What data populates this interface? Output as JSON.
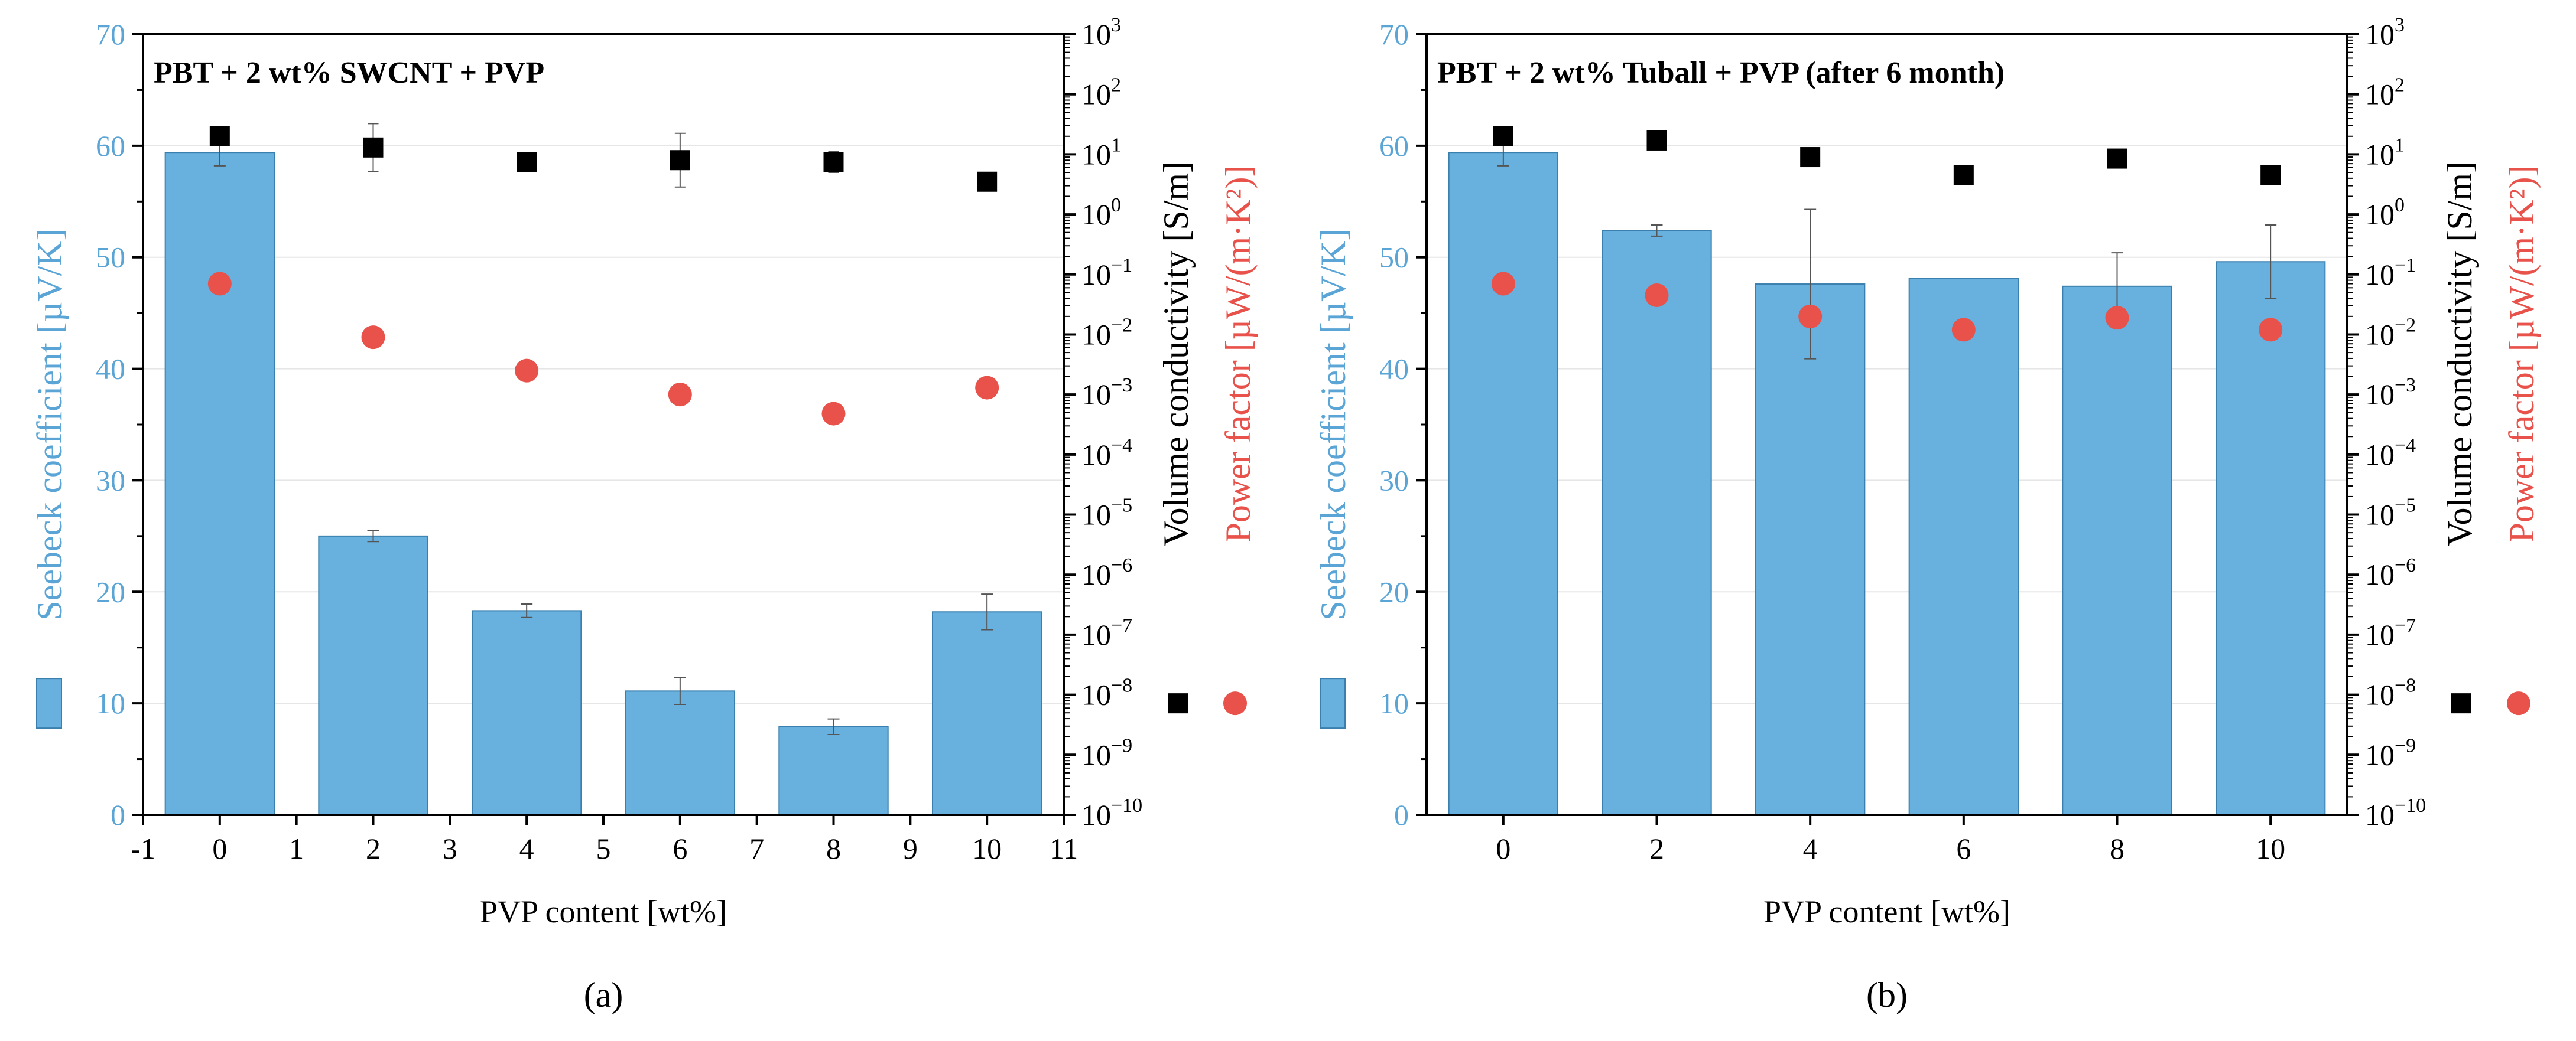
{
  "figure": {
    "panel_labels": [
      "(a)",
      "(b)"
    ]
  },
  "colors": {
    "bar_fill": "#68b0dd",
    "bar_stroke": "#3a7fae",
    "seebeck_axis": "#5aa5d6",
    "conductivity": "#000000",
    "power_factor": "#e8524a",
    "grid": "#e6e6e6",
    "error": "#555555"
  },
  "chart_data": [
    {
      "type": "bar",
      "title": "PBT + 2 wt% SWCNT + PVP",
      "panel_label": "(a)",
      "xlabel": "PVP content [wt%]",
      "xlim": [
        -1,
        11
      ],
      "xticks": [
        "-1",
        "0",
        "1",
        "2",
        "3",
        "4",
        "5",
        "6",
        "7",
        "8",
        "9",
        "10",
        "11"
      ],
      "categories": [
        "0",
        "2",
        "4",
        "6",
        "8",
        "10"
      ],
      "y_left": {
        "label": "Seebeck coefficient [µV/K]",
        "ylim": [
          0,
          70
        ],
        "ticks": [
          0,
          10,
          20,
          30,
          40,
          50,
          60,
          70
        ]
      },
      "y_right": {
        "label1": "Volume conductivity [S/m]",
        "label2": "Power factor [µW/(m·K²)]",
        "scale": "log",
        "exp_range": [
          -10,
          3
        ]
      },
      "series": [
        {
          "name": "Seebeck coefficient",
          "type": "bar",
          "axis": "left",
          "x": [
            0,
            2,
            4,
            6,
            8,
            10
          ],
          "values": [
            59.4,
            25.0,
            18.3,
            11.1,
            7.9,
            18.2
          ],
          "errors": [
            1.2,
            0.5,
            0.6,
            1.2,
            0.7,
            1.6
          ]
        },
        {
          "name": "Volume conductivity",
          "type": "scatter",
          "marker": "square",
          "axis": "right",
          "x": [
            0,
            2,
            4,
            6,
            8,
            10
          ],
          "values": [
            20,
            13,
            7.5,
            8,
            7.5,
            3.5
          ],
          "error_factor": [
            1.4,
            2.5,
            1.3,
            2.8,
            1.5,
            1.2
          ]
        },
        {
          "name": "Power factor",
          "type": "scatter",
          "marker": "circle",
          "axis": "right",
          "x": [
            0,
            2,
            4,
            6,
            8,
            10
          ],
          "values": [
            0.07,
            0.009,
            0.0025,
            0.001,
            0.00048,
            0.0013
          ]
        }
      ],
      "legend_y_value": 10
    },
    {
      "type": "bar",
      "title": "PBT + 2 wt% Tuball + PVP (after 6 month)",
      "panel_label": "(b)",
      "xlabel": "PVP content [wt%]",
      "categories": [
        "0",
        "2",
        "4",
        "6",
        "8",
        "10"
      ],
      "y_left": {
        "label": "Seebeck coefficient [µV/K]",
        "ylim": [
          0,
          70
        ],
        "ticks": [
          0,
          10,
          20,
          30,
          40,
          50,
          60,
          70
        ]
      },
      "y_right": {
        "label1": "Volume conductivity [S/m]",
        "label2": "Power factor [µW/(m·K²)]",
        "scale": "log",
        "exp_range": [
          -10,
          3
        ]
      },
      "series": [
        {
          "name": "Seebeck coefficient",
          "type": "bar",
          "axis": "left",
          "x": [
            "0",
            "2",
            "4",
            "6",
            "8",
            "10"
          ],
          "values": [
            59.4,
            52.4,
            47.6,
            48.1,
            47.4,
            49.6
          ],
          "errors": [
            1.2,
            0.5,
            6.7,
            0.15,
            3.0,
            3.3
          ]
        },
        {
          "name": "Volume conductivity",
          "type": "scatter",
          "marker": "square",
          "axis": "right",
          "x": [
            "0",
            "2",
            "4",
            "6",
            "8",
            "10"
          ],
          "values": [
            20,
            17,
            9,
            4.5,
            8.5,
            4.5
          ]
        },
        {
          "name": "Power factor",
          "type": "scatter",
          "marker": "circle",
          "axis": "right",
          "x": [
            "0",
            "2",
            "4",
            "6",
            "8",
            "10"
          ],
          "values": [
            0.07,
            0.045,
            0.02,
            0.012,
            0.019,
            0.012
          ]
        }
      ],
      "legend_y_value": 10
    }
  ]
}
